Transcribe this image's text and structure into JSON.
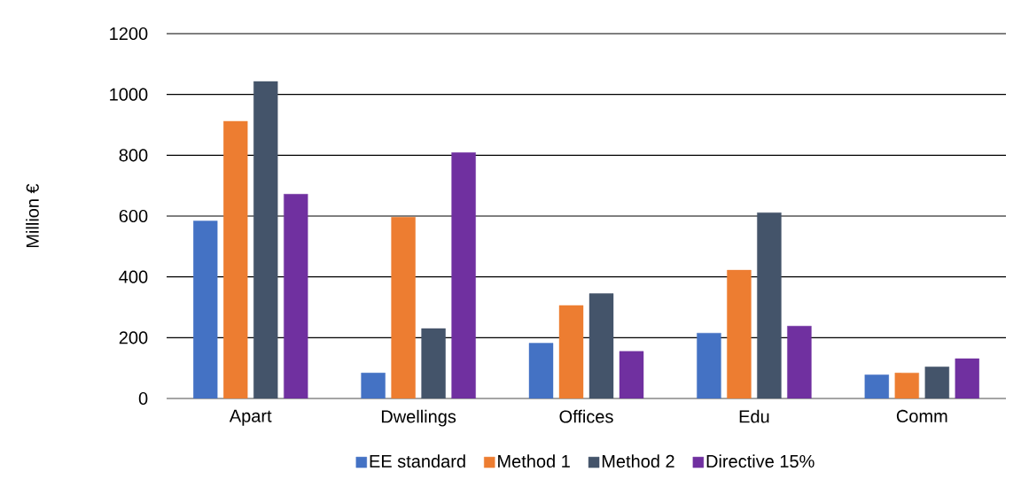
{
  "chart_data": {
    "type": "bar",
    "ylabel": "Million €",
    "categories": [
      "Apart",
      "Dwellings",
      "Offices",
      "Edu",
      "Comm"
    ],
    "series": [
      {
        "name": "EE standard",
        "color": "#4472c4",
        "values": [
          584,
          84,
          182,
          215,
          78
        ]
      },
      {
        "name": "Method 1",
        "color": "#ed7d31",
        "values": [
          912,
          596,
          306,
          422,
          84
        ]
      },
      {
        "name": "Method 2",
        "color": "#44546a",
        "values": [
          1043,
          230,
          345,
          611,
          104
        ]
      },
      {
        "name": "Directive 15%",
        "color": "#7030a0",
        "values": [
          672,
          809,
          155,
          238,
          131
        ]
      }
    ],
    "ylim": [
      0,
      1200
    ],
    "yticks": [
      0,
      200,
      400,
      600,
      800,
      1000,
      1200
    ],
    "grid": "y",
    "legend": "bottom"
  }
}
